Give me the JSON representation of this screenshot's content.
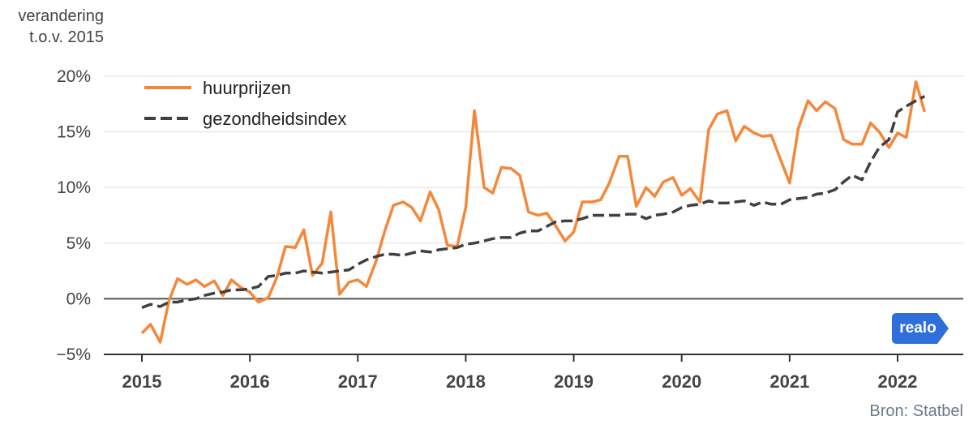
{
  "y_axis_title": [
    "verandering",
    "t.o.v. 2015"
  ],
  "source": "Bron: Statbel",
  "logo_text": "realo",
  "colors": {
    "huurprijzen": "#f5873a",
    "gezondheidsindex": "#404040",
    "logo": "#2f6fdc",
    "grid": "#dddddd",
    "axis": "#555555"
  },
  "chart_data": {
    "type": "line",
    "x_unit": "fractional year",
    "xlim": [
      2015,
      2022.3
    ],
    "ylim": [
      -5,
      20
    ],
    "x_ticks": [
      2015,
      2016,
      2017,
      2018,
      2019,
      2020,
      2021,
      2022
    ],
    "x_tick_labels": [
      "2015",
      "2016",
      "2017",
      "2018",
      "2019",
      "2020",
      "2021",
      "2022"
    ],
    "y_ticks": [
      -5,
      0,
      5,
      10,
      15,
      20
    ],
    "y_tick_labels": [
      "−5%",
      "0%",
      "5%",
      "10%",
      "15%",
      "20%"
    ],
    "legend_position": "top-left",
    "grid": true,
    "series": [
      {
        "name": "huurprijzen",
        "style": "solid",
        "points": [
          [
            2015.0,
            -3.1
          ],
          [
            2015.08,
            -2.3
          ],
          [
            2015.17,
            -3.9
          ],
          [
            2015.25,
            -0.2
          ],
          [
            2015.33,
            1.8
          ],
          [
            2015.42,
            1.3
          ],
          [
            2015.5,
            1.7
          ],
          [
            2015.58,
            1.1
          ],
          [
            2015.67,
            1.6
          ],
          [
            2015.75,
            0.3
          ],
          [
            2015.83,
            1.7
          ],
          [
            2015.92,
            1.0
          ],
          [
            2016.0,
            0.6
          ],
          [
            2016.08,
            -0.3
          ],
          [
            2016.17,
            0.1
          ],
          [
            2016.25,
            1.9
          ],
          [
            2016.33,
            4.7
          ],
          [
            2016.42,
            4.6
          ],
          [
            2016.5,
            6.2
          ],
          [
            2016.58,
            2.1
          ],
          [
            2016.67,
            3.2
          ],
          [
            2016.75,
            7.8
          ],
          [
            2016.83,
            0.4
          ],
          [
            2016.92,
            1.5
          ],
          [
            2017.0,
            1.7
          ],
          [
            2017.08,
            1.1
          ],
          [
            2017.17,
            3.4
          ],
          [
            2017.25,
            6.1
          ],
          [
            2017.33,
            8.4
          ],
          [
            2017.42,
            8.7
          ],
          [
            2017.5,
            8.2
          ],
          [
            2017.58,
            7.0
          ],
          [
            2017.67,
            9.6
          ],
          [
            2017.75,
            8.0
          ],
          [
            2017.83,
            4.8
          ],
          [
            2017.92,
            4.7
          ],
          [
            2018.0,
            8.2
          ],
          [
            2018.08,
            16.9
          ],
          [
            2018.17,
            10.0
          ],
          [
            2018.25,
            9.5
          ],
          [
            2018.33,
            11.8
          ],
          [
            2018.42,
            11.7
          ],
          [
            2018.5,
            11.1
          ],
          [
            2018.58,
            7.8
          ],
          [
            2018.67,
            7.5
          ],
          [
            2018.75,
            7.7
          ],
          [
            2018.83,
            6.6
          ],
          [
            2018.92,
            5.2
          ],
          [
            2019.0,
            6.0
          ],
          [
            2019.08,
            8.7
          ],
          [
            2019.17,
            8.7
          ],
          [
            2019.25,
            8.9
          ],
          [
            2019.33,
            10.4
          ],
          [
            2019.42,
            12.8
          ],
          [
            2019.5,
            12.8
          ],
          [
            2019.58,
            8.3
          ],
          [
            2019.67,
            10.0
          ],
          [
            2019.75,
            9.2
          ],
          [
            2019.83,
            10.5
          ],
          [
            2019.92,
            10.9
          ],
          [
            2020.0,
            9.3
          ],
          [
            2020.08,
            9.9
          ],
          [
            2020.17,
            8.7
          ],
          [
            2020.25,
            15.2
          ],
          [
            2020.33,
            16.6
          ],
          [
            2020.42,
            16.9
          ],
          [
            2020.5,
            14.2
          ],
          [
            2020.58,
            15.5
          ],
          [
            2020.67,
            14.9
          ],
          [
            2020.75,
            14.6
          ],
          [
            2020.83,
            14.7
          ],
          [
            2020.92,
            12.4
          ],
          [
            2021.0,
            10.4
          ],
          [
            2021.08,
            15.3
          ],
          [
            2021.17,
            17.8
          ],
          [
            2021.25,
            16.9
          ],
          [
            2021.33,
            17.7
          ],
          [
            2021.42,
            17.1
          ],
          [
            2021.5,
            14.3
          ],
          [
            2021.58,
            13.9
          ],
          [
            2021.67,
            13.9
          ],
          [
            2021.75,
            15.8
          ],
          [
            2021.83,
            15.0
          ],
          [
            2021.92,
            13.6
          ],
          [
            2022.0,
            14.9
          ],
          [
            2022.08,
            14.5
          ],
          [
            2022.17,
            19.5
          ],
          [
            2022.25,
            16.8
          ]
        ]
      },
      {
        "name": "gezondheidsindex",
        "style": "dashed",
        "points": [
          [
            2015.0,
            -0.8
          ],
          [
            2015.08,
            -0.5
          ],
          [
            2015.17,
            -0.7
          ],
          [
            2015.25,
            -0.3
          ],
          [
            2015.33,
            -0.3
          ],
          [
            2015.42,
            -0.1
          ],
          [
            2015.5,
            0.0
          ],
          [
            2015.58,
            0.3
          ],
          [
            2015.67,
            0.5
          ],
          [
            2015.75,
            0.6
          ],
          [
            2015.83,
            0.8
          ],
          [
            2015.92,
            0.8
          ],
          [
            2016.0,
            0.9
          ],
          [
            2016.08,
            1.1
          ],
          [
            2016.17,
            2.0
          ],
          [
            2016.25,
            2.1
          ],
          [
            2016.33,
            2.3
          ],
          [
            2016.42,
            2.3
          ],
          [
            2016.5,
            2.5
          ],
          [
            2016.58,
            2.4
          ],
          [
            2016.67,
            2.3
          ],
          [
            2016.75,
            2.4
          ],
          [
            2016.83,
            2.5
          ],
          [
            2016.92,
            2.6
          ],
          [
            2017.0,
            3.1
          ],
          [
            2017.08,
            3.5
          ],
          [
            2017.17,
            3.8
          ],
          [
            2017.25,
            4.0
          ],
          [
            2017.33,
            4.0
          ],
          [
            2017.42,
            3.9
          ],
          [
            2017.5,
            4.1
          ],
          [
            2017.58,
            4.3
          ],
          [
            2017.67,
            4.2
          ],
          [
            2017.75,
            4.4
          ],
          [
            2017.83,
            4.5
          ],
          [
            2017.92,
            4.6
          ],
          [
            2018.0,
            4.9
          ],
          [
            2018.08,
            5.0
          ],
          [
            2018.17,
            5.2
          ],
          [
            2018.25,
            5.4
          ],
          [
            2018.33,
            5.5
          ],
          [
            2018.42,
            5.5
          ],
          [
            2018.5,
            5.9
          ],
          [
            2018.58,
            6.1
          ],
          [
            2018.67,
            6.1
          ],
          [
            2018.75,
            6.5
          ],
          [
            2018.83,
            6.9
          ],
          [
            2018.92,
            7.0
          ],
          [
            2019.0,
            7.0
          ],
          [
            2019.08,
            7.2
          ],
          [
            2019.17,
            7.5
          ],
          [
            2019.25,
            7.5
          ],
          [
            2019.33,
            7.5
          ],
          [
            2019.42,
            7.5
          ],
          [
            2019.5,
            7.6
          ],
          [
            2019.58,
            7.6
          ],
          [
            2019.67,
            7.2
          ],
          [
            2019.75,
            7.5
          ],
          [
            2019.83,
            7.6
          ],
          [
            2019.92,
            7.8
          ],
          [
            2020.0,
            8.2
          ],
          [
            2020.08,
            8.4
          ],
          [
            2020.17,
            8.5
          ],
          [
            2020.25,
            8.8
          ],
          [
            2020.33,
            8.6
          ],
          [
            2020.42,
            8.6
          ],
          [
            2020.5,
            8.7
          ],
          [
            2020.58,
            8.8
          ],
          [
            2020.67,
            8.4
          ],
          [
            2020.75,
            8.7
          ],
          [
            2020.83,
            8.5
          ],
          [
            2020.92,
            8.5
          ],
          [
            2021.0,
            8.9
          ],
          [
            2021.08,
            9.0
          ],
          [
            2021.17,
            9.1
          ],
          [
            2021.25,
            9.4
          ],
          [
            2021.33,
            9.5
          ],
          [
            2021.42,
            9.8
          ],
          [
            2021.5,
            10.5
          ],
          [
            2021.58,
            11.1
          ],
          [
            2021.67,
            10.7
          ],
          [
            2021.75,
            12.3
          ],
          [
            2021.83,
            13.6
          ],
          [
            2021.92,
            14.3
          ],
          [
            2022.0,
            16.8
          ],
          [
            2022.08,
            17.3
          ],
          [
            2022.17,
            17.8
          ],
          [
            2022.25,
            18.2
          ]
        ]
      }
    ]
  }
}
